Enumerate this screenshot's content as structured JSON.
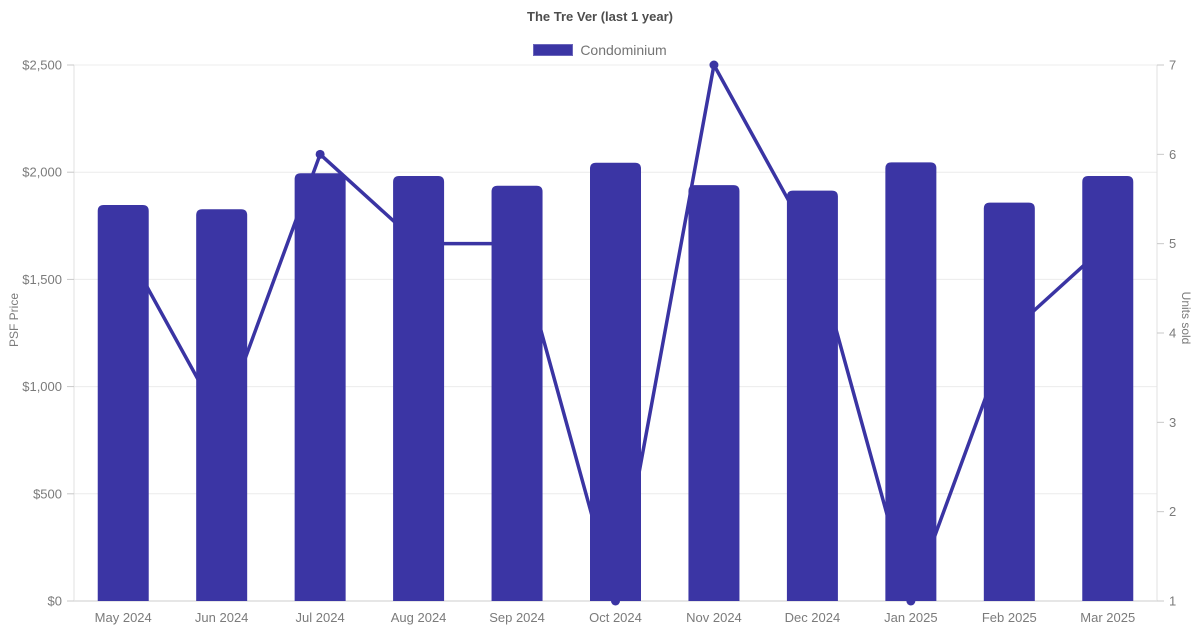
{
  "title": "The Tre Ver (last 1 year)",
  "legend": {
    "label": "Condominium"
  },
  "colors": {
    "bar": "#3b35a4",
    "line": "#3a34a3",
    "marker": "#3a34a3",
    "grid": "#ececec",
    "axis_border": "#e2e2e2",
    "axis_baseline": "#cdcdcd",
    "tick_mark": "#c8c8c8",
    "title_text": "#4d4d4d",
    "tick_text": "#7b7b7b"
  },
  "chart_data": {
    "type": "bar+line combo",
    "title": "The Tre Ver (last 1 year)",
    "categories": [
      "May 2024",
      "Jun 2024",
      "Jul 2024",
      "Aug 2024",
      "Sep 2024",
      "Oct 2024",
      "Nov 2024",
      "Dec 2024",
      "Jan 2025",
      "Feb 2025",
      "Mar 2025"
    ],
    "series": [
      {
        "name": "Condominium",
        "type": "bar",
        "axis": "left",
        "values": [
          1847,
          1827,
          1995,
          1982,
          1937,
          2044,
          1940,
          1914,
          2046,
          1858,
          1982
        ]
      },
      {
        "name": "Units sold",
        "type": "line",
        "axis": "right",
        "values": [
          5,
          3,
          6,
          5,
          5,
          1,
          7,
          5,
          1,
          4,
          5
        ]
      }
    ],
    "ylabel_left": "PSF Price",
    "ylabel_right": "Units sold",
    "ylim_left": [
      0,
      2500
    ],
    "ylim_right": [
      1,
      7
    ],
    "yticks_left": [
      {
        "label": "$0",
        "value": 0
      },
      {
        "label": "$500",
        "value": 500
      },
      {
        "label": "$1,000",
        "value": 1000
      },
      {
        "label": "$1,500",
        "value": 1500
      },
      {
        "label": "$2,000",
        "value": 2000
      },
      {
        "label": "$2,500",
        "value": 2500
      }
    ],
    "yticks_right": [
      {
        "label": "1",
        "value": 1
      },
      {
        "label": "2",
        "value": 2
      },
      {
        "label": "3",
        "value": 3
      },
      {
        "label": "4",
        "value": 4
      },
      {
        "label": "5",
        "value": 5
      },
      {
        "label": "6",
        "value": 6
      },
      {
        "label": "7",
        "value": 7
      }
    ],
    "grid": "horizontal gridlines at left-axis ticks",
    "legend_position": "top-center"
  }
}
